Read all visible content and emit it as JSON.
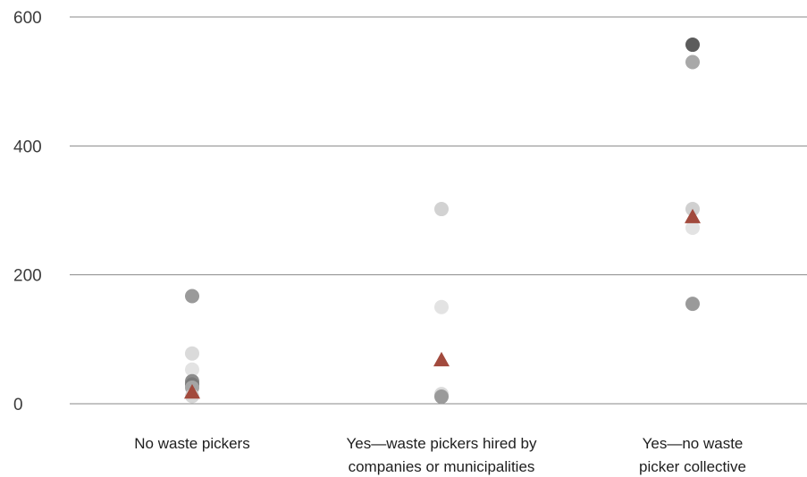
{
  "chart_data": {
    "type": "scatter",
    "title": "",
    "xlabel": "",
    "ylabel": "",
    "ylim": [
      0,
      600
    ],
    "y_ticks": [
      0,
      200,
      400,
      600
    ],
    "grid": true,
    "categories": [
      [
        "No waste pickers"
      ],
      [
        "Yes—waste pickers hired by",
        "companies or municipalities"
      ],
      [
        "Yes—no waste",
        "picker collective"
      ]
    ],
    "points": [
      {
        "category": 0,
        "value": 167,
        "color": "#9a9a9a"
      },
      {
        "category": 0,
        "value": 78,
        "color": "#dadada"
      },
      {
        "category": 0,
        "value": 53,
        "color": "#e3e3e3"
      },
      {
        "category": 0,
        "value": 35,
        "color": "#8c8c8c"
      },
      {
        "category": 0,
        "value": 30,
        "color": "#7a7a7a"
      },
      {
        "category": 0,
        "value": 25,
        "color": "#a5a5a5"
      },
      {
        "category": 0,
        "value": 12,
        "color": "#d6d6d6"
      },
      {
        "category": 1,
        "value": 302,
        "color": "#d2d2d2"
      },
      {
        "category": 1,
        "value": 150,
        "color": "#e3e3e3"
      },
      {
        "category": 1,
        "value": 15,
        "color": "#dadada"
      },
      {
        "category": 1,
        "value": 11,
        "color": "#9a9a9a"
      },
      {
        "category": 2,
        "value": 557,
        "color": "#5c5c5c"
      },
      {
        "category": 2,
        "value": 530,
        "color": "#a8a8a8"
      },
      {
        "category": 2,
        "value": 302,
        "color": "#d0d0d0"
      },
      {
        "category": 2,
        "value": 273,
        "color": "#e3e3e3"
      },
      {
        "category": 2,
        "value": 155,
        "color": "#9a9a9a"
      }
    ],
    "means": [
      {
        "category": 0,
        "value": 18,
        "color": "#a24a3d"
      },
      {
        "category": 1,
        "value": 68,
        "color": "#a24a3d"
      },
      {
        "category": 2,
        "value": 290,
        "color": "#a24a3d"
      }
    ]
  }
}
